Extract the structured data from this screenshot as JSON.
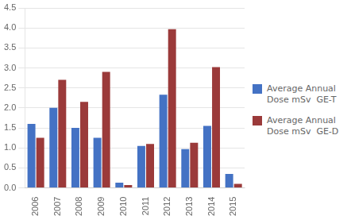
{
  "chart_data": {
    "type": "bar",
    "categories": [
      "2006",
      "2007",
      "2008",
      "2009",
      "2010",
      "2011",
      "2012",
      "2013",
      "2014",
      "2015"
    ],
    "series": [
      {
        "name": "Average Annual\nDose mSv  GE-T",
        "color": "#4472C4",
        "values": [
          1.6,
          2.0,
          1.5,
          1.25,
          0.13,
          1.05,
          2.33,
          0.97,
          1.55,
          0.35
        ]
      },
      {
        "name": "Average Annual\nDose mSv  GE-D",
        "color": "#9B3A3A",
        "values": [
          1.25,
          2.7,
          2.15,
          2.9,
          0.07,
          1.1,
          3.97,
          1.13,
          3.02,
          0.1
        ]
      }
    ],
    "ylim": [
      0,
      4.5
    ],
    "yticks": [
      {
        "value": 0,
        "label": "0.0"
      },
      0.5,
      {
        "value": 1,
        "label": "1.0"
      },
      1.5,
      {
        "value": 2,
        "label": "2.0"
      },
      2.5,
      {
        "value": 3,
        "label": "3.0"
      },
      3.5,
      {
        "value": 4,
        "label": "4.0"
      },
      4.5
    ],
    "grid": true,
    "legend": "right"
  }
}
